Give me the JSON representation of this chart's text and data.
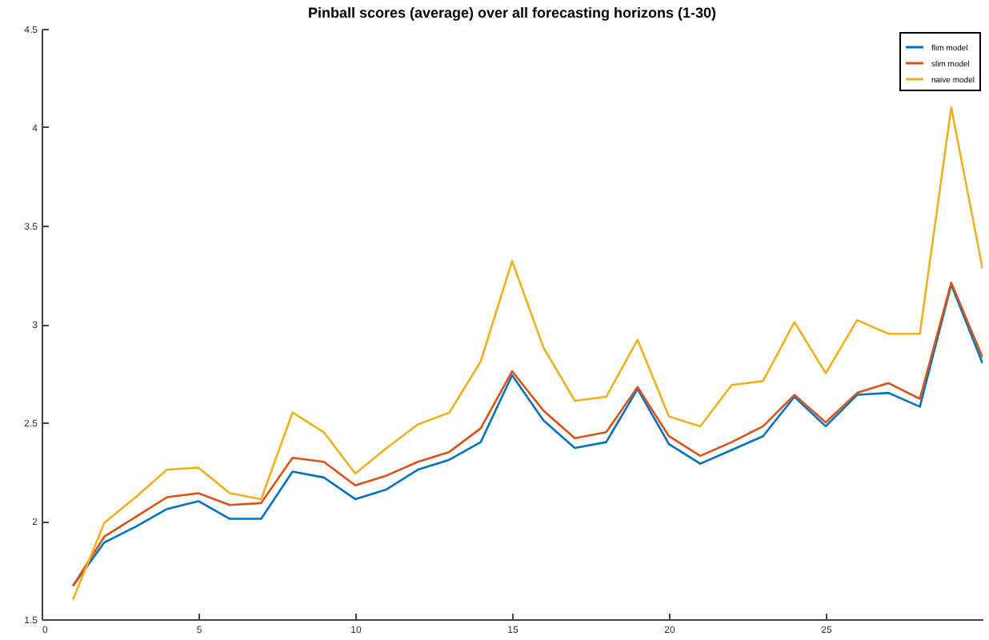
{
  "chart_data": {
    "type": "line",
    "title": "Pinball scores (average) over all forecasting horizons (1-30)",
    "x": [
      1,
      2,
      3,
      4,
      5,
      6,
      7,
      8,
      9,
      10,
      11,
      12,
      13,
      14,
      15,
      16,
      17,
      18,
      19,
      20,
      21,
      22,
      23,
      24,
      25,
      26,
      27,
      28,
      29,
      30
    ],
    "series": [
      {
        "name": "flim model",
        "color": "#0072bd",
        "values": [
          1.67,
          1.89,
          1.97,
          2.06,
          2.1,
          2.01,
          2.01,
          2.25,
          2.22,
          2.11,
          2.16,
          2.26,
          2.31,
          2.4,
          2.74,
          2.51,
          2.37,
          2.4,
          2.67,
          2.39,
          2.29,
          2.36,
          2.43,
          2.63,
          2.48,
          2.64,
          2.65,
          2.58,
          3.2,
          2.8
        ]
      },
      {
        "name": "slim model",
        "color": "#d95319",
        "values": [
          1.67,
          1.92,
          2.02,
          2.12,
          2.14,
          2.08,
          2.09,
          2.32,
          2.3,
          2.18,
          2.23,
          2.3,
          2.35,
          2.47,
          2.76,
          2.56,
          2.42,
          2.45,
          2.68,
          2.43,
          2.33,
          2.4,
          2.48,
          2.64,
          2.5,
          2.65,
          2.7,
          2.62,
          3.21,
          2.83
        ]
      },
      {
        "name": "naive model",
        "color": "#edb120",
        "values": [
          1.6,
          1.99,
          2.12,
          2.26,
          2.27,
          2.14,
          2.11,
          2.55,
          2.45,
          2.24,
          2.37,
          2.49,
          2.55,
          2.81,
          3.32,
          2.88,
          2.61,
          2.63,
          2.92,
          2.53,
          2.48,
          2.69,
          2.71,
          3.01,
          2.75,
          3.02,
          2.95,
          2.95,
          4.1,
          3.28
        ]
      }
    ],
    "xlim": [
      0,
      30
    ],
    "xticks": [
      0,
      5,
      10,
      15,
      20,
      25
    ],
    "ylim": [
      1.5,
      4.5
    ],
    "yticks": [
      1.5,
      2,
      2.5,
      3,
      3.5,
      4,
      4.5
    ],
    "grid": false,
    "legend": "top right",
    "line_style": "solid",
    "marker": "none"
  }
}
